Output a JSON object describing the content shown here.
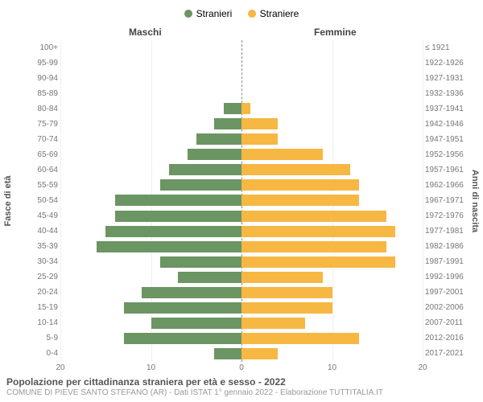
{
  "legend": {
    "male": "Stranieri",
    "female": "Straniere",
    "male_color": "#6b9562",
    "female_color": "#f6b743"
  },
  "headers": {
    "left": "Maschi",
    "right": "Femmine"
  },
  "axes": {
    "left_label": "Fasce di età",
    "right_label": "Anni di nascita",
    "x_max": 20,
    "x_ticks": [
      20,
      10,
      0,
      10,
      20
    ]
  },
  "rows": [
    {
      "age": "100+",
      "male": 0,
      "female": 0,
      "birth": "≤ 1921"
    },
    {
      "age": "95-99",
      "male": 0,
      "female": 0,
      "birth": "1922-1926"
    },
    {
      "age": "90-94",
      "male": 0,
      "female": 0,
      "birth": "1927-1931"
    },
    {
      "age": "85-89",
      "male": 0,
      "female": 0,
      "birth": "1932-1936"
    },
    {
      "age": "80-84",
      "male": 2,
      "female": 1,
      "birth": "1937-1941"
    },
    {
      "age": "75-79",
      "male": 3,
      "female": 4,
      "birth": "1942-1946"
    },
    {
      "age": "70-74",
      "male": 5,
      "female": 4,
      "birth": "1947-1951"
    },
    {
      "age": "65-69",
      "male": 6,
      "female": 9,
      "birth": "1952-1956"
    },
    {
      "age": "60-64",
      "male": 8,
      "female": 12,
      "birth": "1957-1961"
    },
    {
      "age": "55-59",
      "male": 9,
      "female": 13,
      "birth": "1962-1966"
    },
    {
      "age": "50-54",
      "male": 14,
      "female": 13,
      "birth": "1967-1971"
    },
    {
      "age": "45-49",
      "male": 14,
      "female": 16,
      "birth": "1972-1976"
    },
    {
      "age": "40-44",
      "male": 15,
      "female": 17,
      "birth": "1977-1981"
    },
    {
      "age": "35-39",
      "male": 16,
      "female": 16,
      "birth": "1982-1986"
    },
    {
      "age": "30-34",
      "male": 9,
      "female": 17,
      "birth": "1987-1991"
    },
    {
      "age": "25-29",
      "male": 7,
      "female": 9,
      "birth": "1992-1996"
    },
    {
      "age": "20-24",
      "male": 11,
      "female": 10,
      "birth": "1997-2001"
    },
    {
      "age": "15-19",
      "male": 13,
      "female": 10,
      "birth": "2002-2006"
    },
    {
      "age": "10-14",
      "male": 10,
      "female": 7,
      "birth": "2007-2011"
    },
    {
      "age": "5-9",
      "male": 13,
      "female": 13,
      "birth": "2012-2016"
    },
    {
      "age": "0-4",
      "male": 3,
      "female": 4,
      "birth": "2017-2021"
    }
  ],
  "footer": {
    "title": "Popolazione per cittadinanza straniera per età e sesso - 2022",
    "subtitle": "COMUNE DI PIEVE SANTO STEFANO (AR) - Dati ISTAT 1° gennaio 2022 - Elaborazione TUTTITALIA.IT"
  },
  "colors": {
    "background": "#ffffff",
    "grid": "#f0f0f0",
    "text": "#555555",
    "text_light": "#999999"
  }
}
